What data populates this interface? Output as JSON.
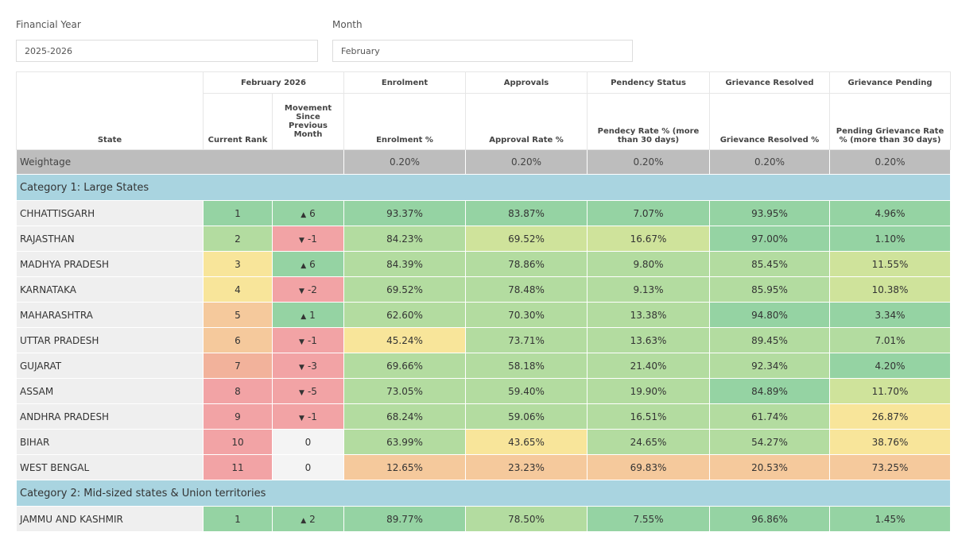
{
  "filters": [
    {
      "label": "Financial Year",
      "value": "2025-2026"
    },
    {
      "label": "Month",
      "value": "February"
    }
  ],
  "table": {
    "group_headers": [
      "February 2026",
      "Enrolment",
      "Approvals",
      "Pendency Status",
      "Grievance Resolved",
      "Grievance Pending"
    ],
    "columns": [
      "State",
      "Current Rank",
      "Movement Since Previous Month",
      "Enrolment %",
      "Approval Rate %",
      "Pendecy Rate % (more than 30 days)",
      "Grievance Resolved %",
      "Pending Grievance Rate % (more than 30 days)"
    ],
    "weightage": {
      "label": "Weightage",
      "values": [
        "0.20%",
        "0.20%",
        "0.20%",
        "0.20%",
        "0.20%"
      ]
    },
    "categories": [
      {
        "title": "Category 1: Large States",
        "rows": [
          {
            "cells": [
              "CHHATTISGARH",
              "1",
              "6",
              "93.37%",
              "83.87%",
              "7.07%",
              "93.95%",
              "4.96%"
            ],
            "colors": [
              "#95d3a3",
              "#95d3a3",
              "#95d3a3",
              "#95d3a3",
              "#95d3a3",
              "#95d3a3",
              "#95d3a3"
            ]
          },
          {
            "cells": [
              "RAJASTHAN",
              "2",
              "-1",
              "84.23%",
              "69.52%",
              "16.67%",
              "97.00%",
              "1.10%"
            ],
            "colors": [
              "#b3dca0",
              "#f2a3a5",
              "#b3dca0",
              "#cfe39b",
              "#cfe39b",
              "#95d3a3",
              "#95d3a3"
            ]
          },
          {
            "cells": [
              "MADHYA PRADESH",
              "3",
              "6",
              "84.39%",
              "78.86%",
              "9.80%",
              "85.45%",
              "11.55%"
            ],
            "colors": [
              "#f8e59a",
              "#95d3a3",
              "#b3dca0",
              "#b3dca0",
              "#b3dca0",
              "#b3dca0",
              "#cfe39b"
            ]
          },
          {
            "cells": [
              "KARNATAKA",
              "4",
              "-2",
              "69.52%",
              "78.48%",
              "9.13%",
              "85.95%",
              "10.38%"
            ],
            "colors": [
              "#f8e59a",
              "#f2a3a5",
              "#b3dca0",
              "#b3dca0",
              "#b3dca0",
              "#b3dca0",
              "#cfe39b"
            ]
          },
          {
            "cells": [
              "MAHARASHTRA",
              "5",
              "1",
              "62.60%",
              "70.30%",
              "13.38%",
              "94.80%",
              "3.34%"
            ],
            "colors": [
              "#f5c99c",
              "#95d3a3",
              "#b3dca0",
              "#b3dca0",
              "#b3dca0",
              "#95d3a3",
              "#95d3a3"
            ]
          },
          {
            "cells": [
              "UTTAR PRADESH",
              "6",
              "-1",
              "45.24%",
              "73.71%",
              "13.63%",
              "89.45%",
              "7.01%"
            ],
            "colors": [
              "#f5c99c",
              "#f2a3a5",
              "#f8e59a",
              "#b3dca0",
              "#b3dca0",
              "#b3dca0",
              "#b3dca0"
            ]
          },
          {
            "cells": [
              "GUJARAT",
              "7",
              "-3",
              "69.66%",
              "58.18%",
              "21.40%",
              "92.34%",
              "4.20%"
            ],
            "colors": [
              "#f2b29b",
              "#f2a3a5",
              "#b3dca0",
              "#b3dca0",
              "#b3dca0",
              "#b3dca0",
              "#95d3a3"
            ]
          },
          {
            "cells": [
              "ASSAM",
              "8",
              "-5",
              "73.05%",
              "59.40%",
              "19.90%",
              "84.89%",
              "11.70%"
            ],
            "colors": [
              "#f2a3a5",
              "#f2a3a5",
              "#b3dca0",
              "#b3dca0",
              "#b3dca0",
              "#95d3a3",
              "#cfe39b"
            ]
          },
          {
            "cells": [
              "ANDHRA PRADESH",
              "9",
              "-1",
              "68.24%",
              "59.06%",
              "16.51%",
              "61.74%",
              "26.87%"
            ],
            "colors": [
              "#f2a3a5",
              "#f2a3a5",
              "#b3dca0",
              "#b3dca0",
              "#b3dca0",
              "#b3dca0",
              "#f8e59a"
            ]
          },
          {
            "cells": [
              "BIHAR",
              "10",
              "0",
              "63.99%",
              "43.65%",
              "24.65%",
              "54.27%",
              "38.76%"
            ],
            "colors": [
              "#f2a3a5",
              "#f4f4f4",
              "#b3dca0",
              "#f8e59a",
              "#b3dca0",
              "#b3dca0",
              "#f8e59a"
            ]
          },
          {
            "cells": [
              "WEST BENGAL",
              "11",
              "0",
              "12.65%",
              "23.23%",
              "69.83%",
              "20.53%",
              "73.25%"
            ],
            "colors": [
              "#f2a3a5",
              "#f4f4f4",
              "#f5c99c",
              "#f5c99c",
              "#f5c99c",
              "#f5c99c",
              "#f5c99c"
            ]
          }
        ]
      },
      {
        "title": "Category 2: Mid-sized states & Union territories",
        "rows": [
          {
            "cells": [
              "JAMMU AND KASHMIR",
              "1",
              "2",
              "89.77%",
              "78.50%",
              "7.55%",
              "96.86%",
              "1.45%"
            ],
            "colors": [
              "#95d3a3",
              "#95d3a3",
              "#95d3a3",
              "#b3dca0",
              "#95d3a3",
              "#95d3a3",
              "#95d3a3"
            ]
          }
        ]
      }
    ]
  }
}
